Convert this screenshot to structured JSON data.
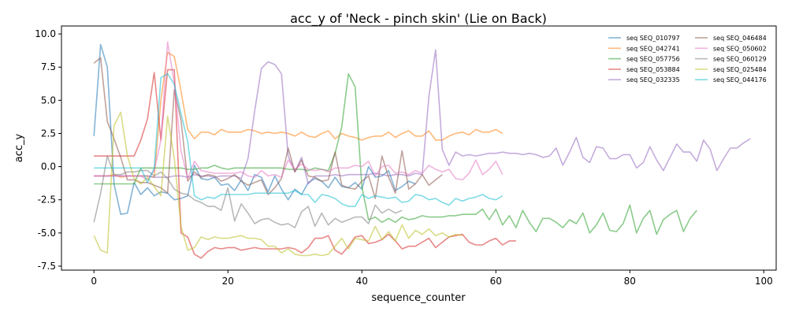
{
  "chart_data": {
    "type": "line",
    "title": "acc_y of 'Neck - pinch skin' (Lie on Back)",
    "xlabel": "sequence_counter",
    "ylabel": "acc_y",
    "xlim": [
      -4.85,
      101.85
    ],
    "ylim": [
      -7.8,
      10.6
    ],
    "xticks": [
      0,
      20,
      40,
      60,
      80,
      100
    ],
    "yticks": [
      -7.5,
      -5.0,
      -2.5,
      0.0,
      2.5,
      5.0,
      7.5,
      10.0
    ],
    "grid": false,
    "legend_position": "upper right",
    "series": [
      {
        "name": "seq SEQ_010797",
        "color": "#1f77b4",
        "values": [
          2.3,
          9.2,
          7.5,
          -1.3,
          -3.6,
          -3.5,
          -1.2,
          -2.1,
          -1.6,
          -2.2,
          -1.9,
          -2.0,
          -2.5,
          -2.4,
          -2.2,
          0.1,
          -0.9,
          -1.0,
          -0.8,
          -1.4,
          -1.3,
          -1.8,
          -1.0,
          -1.8,
          -0.6,
          -0.8,
          -1.9,
          -0.7,
          -1.7,
          -2.5,
          -1.7,
          -2.1,
          -1.2,
          -0.9,
          -1.1,
          -1.6,
          -0.8,
          -1.5,
          -1.6,
          -1.2,
          -1.7,
          0.0,
          -0.8,
          -0.7,
          -0.3,
          -1.8,
          -1.5,
          -1.1,
          -1.3
        ]
      },
      {
        "name": "seq SEQ_042741",
        "color": "#ff7f0e",
        "values": [
          -0.7,
          -0.7,
          -0.7,
          -0.6,
          -0.8,
          -0.7,
          -0.7,
          -0.7,
          -0.7,
          -0.8,
          5.0,
          8.6,
          8.3,
          5.7,
          2.8,
          2.1,
          2.6,
          2.6,
          2.4,
          2.8,
          2.6,
          2.6,
          2.6,
          2.8,
          2.7,
          2.5,
          2.6,
          2.5,
          2.6,
          2.5,
          2.3,
          2.6,
          2.3,
          2.2,
          2.5,
          2.7,
          2.1,
          2.5,
          2.3,
          2.2,
          2.0,
          2.2,
          2.3,
          2.3,
          2.6,
          2.2,
          2.5,
          2.7,
          2.3,
          2.3,
          2.7,
          2.0,
          2.0,
          2.3,
          2.5,
          2.6,
          2.4,
          2.8,
          2.6,
          2.6,
          2.8,
          2.5
        ]
      },
      {
        "name": "seq SEQ_057756",
        "color": "#2ca02c",
        "values": [
          -1.3,
          -1.3,
          -1.3,
          -1.3,
          -1.3,
          -1.3,
          -1.3,
          -0.1,
          -0.1,
          -0.1,
          -0.1,
          -0.1,
          -0.1,
          -0.1,
          -0.2,
          -0.2,
          -0.1,
          -0.1,
          0.1,
          -0.1,
          -0.2,
          -0.1,
          -0.1,
          -0.1,
          -0.1,
          -0.1,
          -0.1,
          -0.1,
          -0.1,
          -0.2,
          -0.2,
          -0.2,
          -0.3,
          -0.1,
          -0.2,
          -0.3,
          1.0,
          3.0,
          7.0,
          6.0,
          -1.5,
          -4.0,
          -3.8,
          -4.2,
          -3.9,
          -4.2,
          -3.8,
          -4.0,
          -3.9,
          -3.7,
          -3.8,
          -3.8,
          -3.8,
          -3.7,
          -3.7,
          -3.6,
          -3.6,
          -3.6,
          -3.2,
          -4.0,
          -3.2,
          -4.4,
          -3.7,
          -4.6,
          -3.3,
          -4.2,
          -4.9,
          -3.9,
          -3.9,
          -4.2,
          -4.6,
          -4.0,
          -4.3,
          -3.5,
          -5.0,
          -4.4,
          -3.5,
          -4.8,
          -4.9,
          -4.3,
          -2.9,
          -5.0,
          -3.9,
          -3.3,
          -5.1,
          -4.0,
          -3.6,
          -3.3,
          -4.9,
          -3.9,
          -3.3
        ]
      },
      {
        "name": "seq SEQ_053884",
        "color": "#d62728",
        "values": [
          0.8,
          0.8,
          0.8,
          0.8,
          0.8,
          0.8,
          0.8,
          2.0,
          3.6,
          7.1,
          2.0,
          7.3,
          7.3,
          -5.0,
          -5.3,
          -6.6,
          -6.9,
          -6.4,
          -6.1,
          -6.2,
          -6.1,
          -6.1,
          -6.3,
          -6.2,
          -6.1,
          -6.2,
          -6.2,
          -6.2,
          -6.2,
          -6.1,
          -6.2,
          -6.5,
          -6.1,
          -5.4,
          -5.4,
          -5.2,
          -6.3,
          -6.6,
          -6.0,
          -5.3,
          -5.2,
          -5.8,
          -5.7,
          -5.5,
          -5.1,
          -5.6,
          -6.2,
          -6.0,
          -6.0,
          -5.7,
          -5.4,
          -6.1,
          -5.7,
          -5.3,
          -5.2,
          -5.1,
          -5.7,
          -5.9,
          -5.9,
          -5.6,
          -5.4,
          -5.9,
          -5.6,
          -5.6
        ]
      },
      {
        "name": "seq SEQ_032335",
        "color": "#9467bd",
        "values": [
          -0.7,
          -0.7,
          -0.7,
          -0.7,
          -0.7,
          -0.7,
          -0.7,
          -0.7,
          -0.7,
          -0.8,
          -0.8,
          -0.8,
          -0.7,
          -0.7,
          -0.8,
          -0.6,
          -0.7,
          -0.7,
          -0.8,
          -0.7,
          -0.7,
          -0.7,
          -0.9,
          0.6,
          4.2,
          7.4,
          7.9,
          7.7,
          7.0,
          0.8,
          -0.4,
          0.7,
          -1.3,
          -0.7,
          -0.7,
          -0.7,
          -0.6,
          -0.7,
          -0.6,
          -0.6,
          -0.6,
          -0.6,
          -0.5,
          -0.6,
          -0.7,
          -0.6,
          -0.6,
          -0.7,
          -0.5,
          -0.6,
          5.3,
          8.8,
          1.3,
          0.1,
          1.1,
          0.8,
          0.9,
          0.8,
          0.9,
          1.0,
          1.0,
          1.1,
          1.0,
          1.0,
          0.9,
          1.0,
          0.9,
          0.7,
          0.8,
          1.4,
          0.1,
          1.1,
          2.2,
          0.7,
          0.3,
          1.5,
          1.4,
          0.6,
          0.6,
          0.9,
          0.9,
          -0.1,
          0.3,
          1.5,
          0.5,
          -0.3,
          0.7,
          1.7,
          1.1,
          1.1,
          0.4,
          2.0,
          1.3,
          -0.3,
          0.6,
          1.4,
          1.4,
          1.8,
          2.1
        ]
      },
      {
        "name": "seq SEQ_046484",
        "color": "#8c564b",
        "values": [
          7.8,
          8.2,
          3.4,
          2.1,
          0.7,
          -1.0,
          -1.0,
          -1.2,
          -1.2,
          -1.4,
          -1.6,
          -2.0,
          5.8,
          3.5,
          -1.1,
          -0.4,
          -0.8,
          -0.6,
          -0.7,
          -1.1,
          -0.9,
          -0.6,
          -1.1,
          -1.4,
          -1.2,
          -1.0,
          -2.1,
          -1.6,
          -0.9,
          1.4,
          -0.4,
          0.5,
          -0.7,
          -0.8,
          -1.1,
          -1.0,
          1.1,
          -1.4,
          -1.6,
          -1.7,
          -1.1,
          -0.7,
          -2.4,
          0.8,
          -0.8,
          -2.0,
          1.2,
          -1.7,
          -1.3,
          -0.6,
          -1.4,
          -1.0,
          -0.6
        ]
      },
      {
        "name": "seq SEQ_050602",
        "color": "#e377c2",
        "values": [
          -0.7,
          -0.7,
          -0.7,
          -0.7,
          -0.7,
          -0.7,
          -0.7,
          -0.7,
          -1.0,
          -0.3,
          2.0,
          9.4,
          6.3,
          1.2,
          -0.9,
          0.4,
          -0.3,
          -0.4,
          -0.5,
          -0.5,
          -0.5,
          -0.5,
          -0.4,
          -0.7,
          -0.8,
          -0.3,
          -0.7,
          -0.6,
          -0.8,
          0.5,
          -0.2,
          0.2,
          -0.2,
          -0.3,
          -0.2,
          -0.4,
          -0.1,
          -0.1,
          -0.1,
          0.1,
          0.0,
          0.4,
          -0.7,
          0.0,
          0.1,
          -0.5,
          -0.4,
          -0.6,
          -0.3,
          -0.5,
          0.1,
          -0.2,
          -0.4,
          -0.2,
          -0.9,
          -1.0,
          -0.5,
          0.5,
          -0.6,
          -0.2,
          0.4,
          -0.6
        ]
      },
      {
        "name": "seq SEQ_060129",
        "color": "#7f7f7f",
        "values": [
          -4.2,
          -2.0,
          0.8,
          -0.6,
          -0.6,
          -0.4,
          -0.4,
          -0.3,
          -0.3,
          -0.7,
          -0.4,
          -0.9,
          -1.7,
          -2.0,
          -2.1,
          -2.5,
          -2.7,
          -3.0,
          -3.0,
          -3.3,
          -1.6,
          -4.1,
          -2.8,
          -3.5,
          -4.3,
          -4.0,
          -3.9,
          -4.2,
          -4.4,
          -4.3,
          -4.6,
          -3.4,
          -3.0,
          -4.5,
          -3.5,
          -4.4,
          -3.9,
          -4.2,
          -4.0,
          -3.8,
          -3.8,
          -4.3,
          -2.9,
          -3.5,
          -3.2,
          -3.5,
          -3.3
        ]
      },
      {
        "name": "seq SEQ_025484",
        "color": "#bcbd22",
        "values": [
          -5.2,
          -6.3,
          -6.5,
          3.1,
          4.1,
          0.8,
          -0.9,
          -1.3,
          -0.8,
          -1.5,
          -2.2,
          3.8,
          0.6,
          -4.5,
          -6.3,
          -6.1,
          -5.3,
          -5.5,
          -5.3,
          -5.4,
          -5.4,
          -5.3,
          -5.2,
          -5.4,
          -5.4,
          -5.5,
          -6.0,
          -6.0,
          -6.5,
          -6.2,
          -6.6,
          -6.7,
          -6.7,
          -6.6,
          -6.7,
          -6.6,
          -6.0,
          -5.4,
          -6.2,
          -5.4,
          -5.5,
          -5.6,
          -4.5,
          -5.5,
          -4.9,
          -5.6,
          -4.4,
          -5.4,
          -4.8,
          -5.1,
          -4.7,
          -5.2,
          -5.0,
          -5.3,
          -5.1,
          -5.2
        ]
      },
      {
        "name": "seq SEQ_044176",
        "color": "#17becf",
        "values": [
          -0.1,
          -0.1,
          -0.1,
          -0.1,
          -0.1,
          -0.1,
          -0.1,
          -0.1,
          -1.2,
          -0.1,
          6.7,
          7.0,
          6.2,
          4.0,
          1.9,
          -2.2,
          -2.5,
          -2.3,
          -2.4,
          -2.1,
          -2.1,
          -2.1,
          -2.1,
          -2.1,
          -2.0,
          -2.0,
          -2.0,
          -2.0,
          -2.0,
          -2.0,
          -1.8,
          -2.1,
          -2.1,
          -2.7,
          -2.1,
          -2.2,
          -2.4,
          -2.8,
          -3.0,
          -3.0,
          -2.1,
          -2.4,
          -2.2,
          -2.3,
          -2.4,
          -2.3,
          -2.7,
          -2.6,
          -2.1,
          -2.2,
          -2.5,
          -2.4,
          -2.7,
          -2.9,
          -2.4,
          -2.6,
          -2.4,
          -2.3,
          -2.1,
          -2.4,
          -2.5,
          -2.2
        ]
      }
    ]
  }
}
